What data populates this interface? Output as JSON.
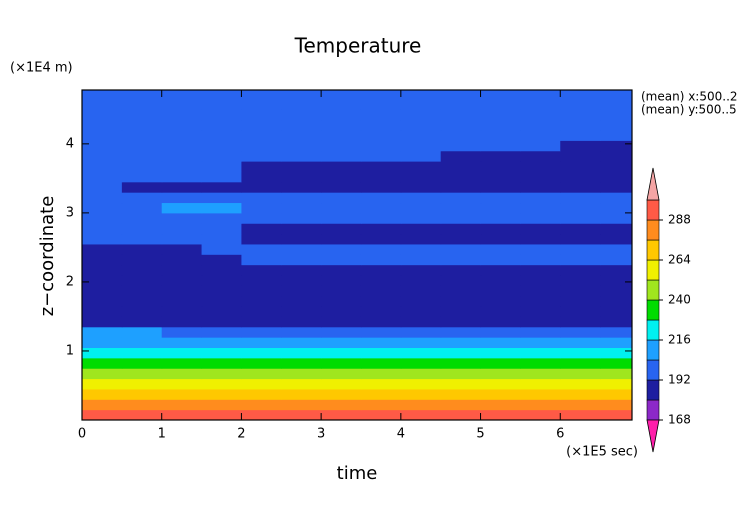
{
  "chart_data": {
    "type": "contour",
    "title": "Temperature",
    "x_label": "time",
    "y_label": "z−coordinate",
    "x_unit": "(×1E5 sec)",
    "y_unit": "(×1E4 m)",
    "annotations": [
      "(mean) x:500..2",
      "(mean) y:500..5"
    ],
    "xlim": [
      0,
      6.9
    ],
    "ylim": [
      0,
      4.78
    ],
    "xticks": [
      0,
      1,
      2,
      3,
      4,
      5,
      6
    ],
    "yticks": [
      1,
      2,
      3,
      4
    ],
    "x_edges": [
      0,
      0.5,
      1,
      1.5,
      2,
      2.5,
      3,
      3.5,
      4,
      4.5,
      5,
      5.5,
      6,
      6.5,
      7
    ],
    "y_edges": [
      0,
      0.15,
      0.3,
      0.45,
      0.6,
      0.75,
      0.9,
      1.05,
      1.2,
      1.35,
      1.5,
      1.65,
      1.8,
      1.95,
      2.1,
      2.25,
      2.4,
      2.55,
      2.7,
      2.85,
      3,
      3.15,
      3.3,
      3.45,
      3.6,
      3.75,
      3.9,
      4.05,
      4.2,
      4.35,
      4.5,
      4.65,
      4.8
    ],
    "z": [
      [
        294,
        294,
        294,
        294,
        294,
        294,
        294,
        294,
        294,
        294,
        294,
        294,
        294,
        294
      ],
      [
        282,
        282,
        282,
        282,
        282,
        282,
        282,
        282,
        282,
        282,
        282,
        282,
        282,
        282
      ],
      [
        270,
        270,
        270,
        270,
        270,
        270,
        270,
        270,
        270,
        270,
        270,
        270,
        270,
        270
      ],
      [
        258,
        258,
        258,
        258,
        258,
        258,
        258,
        258,
        258,
        258,
        258,
        258,
        258,
        258
      ],
      [
        246,
        246,
        246,
        246,
        246,
        246,
        246,
        246,
        246,
        246,
        246,
        246,
        246,
        246
      ],
      [
        234,
        234,
        234,
        234,
        234,
        234,
        234,
        234,
        234,
        234,
        234,
        234,
        234,
        234
      ],
      [
        222,
        222,
        222,
        222,
        222,
        222,
        222,
        222,
        222,
        222,
        222,
        222,
        222,
        222
      ],
      [
        210,
        210,
        210,
        210,
        210,
        210,
        210,
        210,
        210,
        210,
        210,
        210,
        210,
        210
      ],
      [
        210,
        210,
        198,
        198,
        198,
        198,
        198,
        198,
        198,
        198,
        198,
        198,
        198,
        198
      ],
      [
        186,
        186,
        186,
        186,
        186,
        186,
        186,
        186,
        186,
        186,
        186,
        186,
        186,
        186
      ],
      [
        186,
        186,
        186,
        186,
        186,
        186,
        186,
        186,
        186,
        186,
        186,
        186,
        186,
        186
      ],
      [
        186,
        186,
        186,
        186,
        186,
        186,
        186,
        186,
        186,
        186,
        186,
        186,
        186,
        186
      ],
      [
        186,
        186,
        186,
        186,
        186,
        186,
        186,
        186,
        186,
        186,
        186,
        186,
        186,
        186
      ],
      [
        186,
        186,
        186,
        186,
        186,
        186,
        186,
        186,
        186,
        186,
        186,
        186,
        186,
        186
      ],
      [
        186,
        186,
        186,
        186,
        186,
        186,
        186,
        186,
        186,
        186,
        186,
        186,
        186,
        186
      ],
      [
        186,
        186,
        186,
        186,
        198,
        198,
        198,
        198,
        198,
        198,
        198,
        198,
        198,
        198
      ],
      [
        186,
        186,
        186,
        198,
        198,
        198,
        198,
        198,
        198,
        198,
        198,
        198,
        198,
        198
      ],
      [
        198,
        198,
        198,
        198,
        186,
        186,
        186,
        186,
        186,
        186,
        186,
        186,
        186,
        186
      ],
      [
        198,
        198,
        198,
        198,
        186,
        186,
        186,
        186,
        186,
        186,
        186,
        186,
        186,
        186
      ],
      [
        198,
        198,
        198,
        198,
        198,
        198,
        198,
        198,
        198,
        198,
        198,
        198,
        198,
        198
      ],
      [
        198,
        198,
        210,
        210,
        198,
        198,
        198,
        198,
        198,
        198,
        198,
        198,
        198,
        198
      ],
      [
        198,
        198,
        198,
        198,
        198,
        198,
        198,
        198,
        198,
        198,
        198,
        198,
        198,
        198
      ],
      [
        198,
        186,
        186,
        186,
        186,
        186,
        186,
        186,
        186,
        186,
        186,
        186,
        186,
        186
      ],
      [
        198,
        198,
        198,
        198,
        186,
        186,
        186,
        186,
        186,
        186,
        186,
        186,
        186,
        186
      ],
      [
        198,
        198,
        198,
        198,
        186,
        186,
        186,
        186,
        186,
        186,
        186,
        186,
        186,
        186
      ],
      [
        198,
        198,
        198,
        198,
        198,
        198,
        198,
        198,
        198,
        186,
        186,
        186,
        186,
        186
      ],
      [
        198,
        198,
        198,
        198,
        198,
        198,
        198,
        198,
        198,
        198,
        198,
        198,
        186,
        186
      ],
      [
        198,
        198,
        198,
        198,
        198,
        198,
        198,
        198,
        198,
        198,
        198,
        198,
        198,
        198
      ],
      [
        198,
        198,
        198,
        198,
        198,
        198,
        198,
        198,
        198,
        198,
        198,
        198,
        198,
        198
      ],
      [
        198,
        198,
        198,
        198,
        198,
        198,
        198,
        198,
        198,
        198,
        198,
        198,
        198,
        198
      ],
      [
        198,
        198,
        198,
        198,
        198,
        198,
        198,
        198,
        198,
        198,
        198,
        198,
        198,
        198
      ],
      [
        198,
        198,
        198,
        198,
        198,
        198,
        198,
        198,
        198,
        198,
        198,
        198,
        198,
        198
      ]
    ],
    "levels": [
      168,
      180,
      192,
      204,
      216,
      228,
      240,
      252,
      264,
      276,
      288,
      300
    ],
    "colors": [
      "#8c28c8",
      "#1e1ea0",
      "#2864f0",
      "#1ea0ff",
      "#00f0f0",
      "#00dc00",
      "#a0e61e",
      "#f0f000",
      "#ffc800",
      "#ff8c1e",
      "#ff5a46"
    ],
    "under_color": "#ff1eaa",
    "over_color": "#f5a5a5",
    "colorbar_ticks": [
      168,
      192,
      216,
      240,
      264,
      288
    ]
  }
}
